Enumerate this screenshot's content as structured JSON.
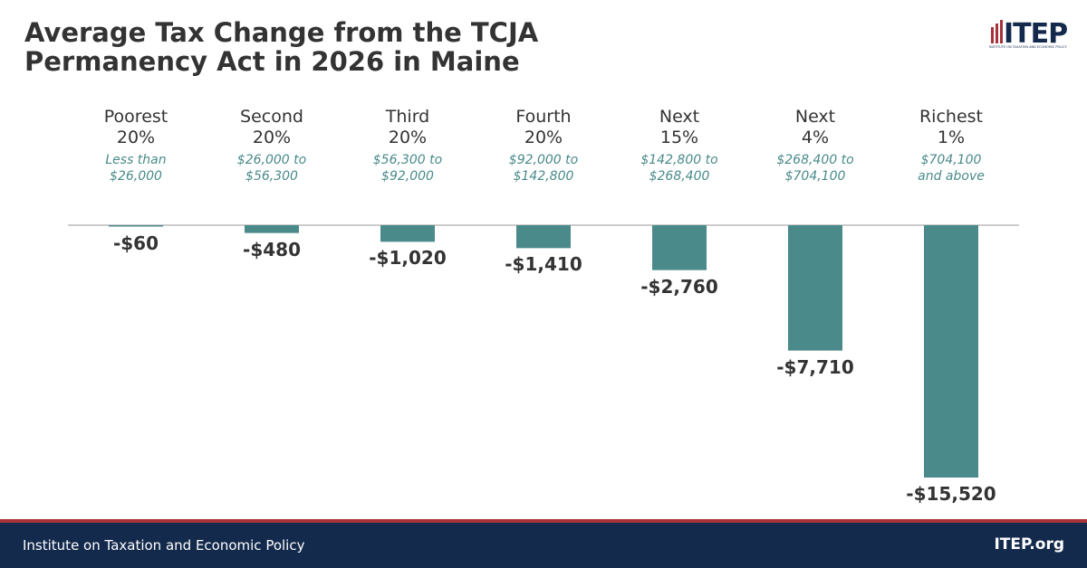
{
  "chart_data": {
    "type": "bar",
    "title": "Average Tax Change from the TCJA\nPermanency Act in 2026 in Maine",
    "categories": [
      "Poorest\n20%",
      "Second\n20%",
      "Third\n20%",
      "Fourth\n20%",
      "Next\n15%",
      "Next\n4%",
      "Richest\n1%"
    ],
    "income_ranges": [
      "Less than\n$26,000",
      "$26,000 to\n$56,300",
      "$56,300 to\n$92,000",
      "$92,000 to\n$142,800",
      "$142,800 to\n$268,400",
      "$268,400 to\n$704,100",
      "$704,100\nand above"
    ],
    "values": [
      -60,
      -480,
      -1020,
      -1410,
      -2760,
      -7710,
      -15520
    ],
    "value_labels": [
      "-$60",
      "-$480",
      "-$1,020",
      "-$1,410",
      "-$2,760",
      "-$7,710",
      "-$15,520"
    ],
    "color": "#4a8a8a"
  },
  "logo": {
    "name": "ITEP",
    "tagline": "INSTITUTE ON TAXATION AND ECONOMIC POLICY"
  },
  "footer": {
    "left": "Institute on Taxation and Economic Policy",
    "right": "ITEP.org"
  }
}
